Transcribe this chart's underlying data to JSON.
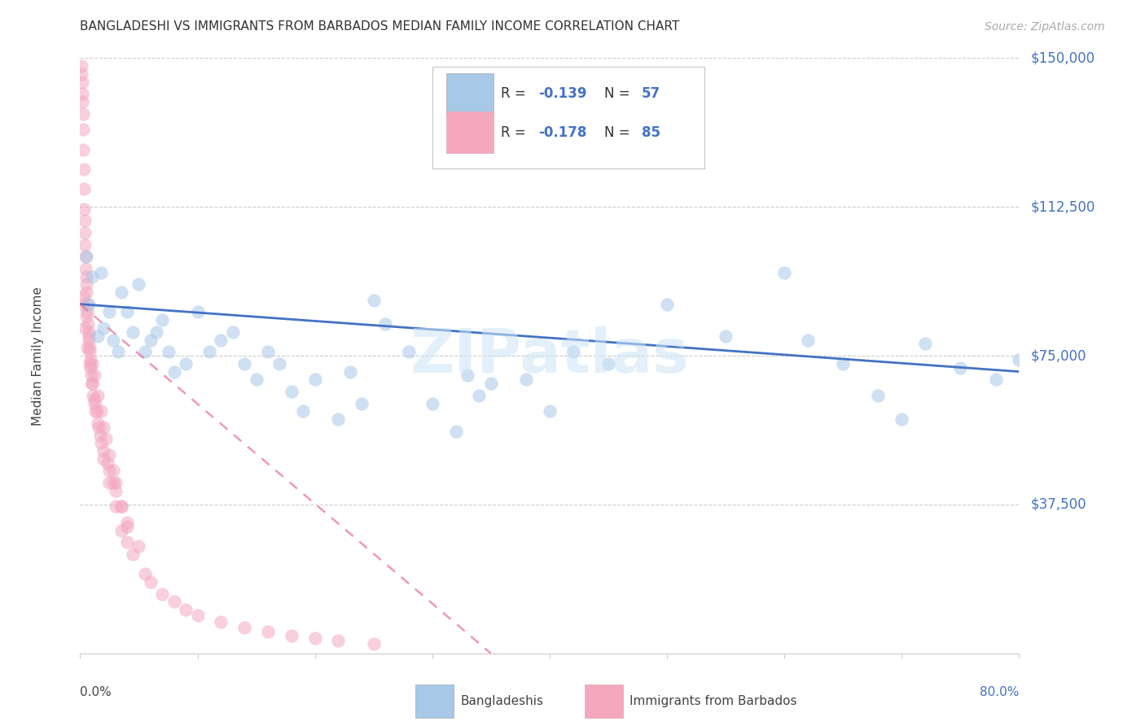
{
  "title": "BANGLADESHI VS IMMIGRANTS FROM BARBADOS MEDIAN FAMILY INCOME CORRELATION CHART",
  "source": "Source: ZipAtlas.com",
  "ylabel": "Median Family Income",
  "xmin": 0.0,
  "xmax": 80.0,
  "ymin": 0,
  "ymax": 150000,
  "watermark": "ZIPatlas",
  "yticks": [
    0,
    37500,
    75000,
    112500,
    150000
  ],
  "ytick_labels": [
    "",
    "$37,500",
    "$75,000",
    "$112,500",
    "$150,000"
  ],
  "blue_color": "#a8c8e8",
  "pink_color": "#f4a8c0",
  "blue_line_color": "#4472c4",
  "pink_line_color": "#e87090",
  "blue_trend_x": [
    0.0,
    80.0
  ],
  "blue_trend_y": [
    88000,
    71000
  ],
  "pink_trend_x": [
    0.0,
    35.0
  ],
  "pink_trend_y": [
    88000,
    0
  ],
  "blue_x": [
    0.5,
    0.7,
    1.0,
    1.5,
    1.8,
    2.0,
    2.5,
    2.8,
    3.2,
    3.5,
    4.0,
    4.5,
    5.0,
    5.5,
    6.0,
    6.5,
    7.0,
    7.5,
    8.0,
    9.0,
    10.0,
    11.0,
    12.0,
    13.0,
    14.0,
    15.0,
    16.0,
    17.0,
    18.0,
    19.0,
    20.0,
    22.0,
    23.0,
    24.0,
    25.0,
    26.0,
    28.0,
    30.0,
    32.0,
    33.0,
    34.0,
    35.0,
    38.0,
    40.0,
    42.0,
    45.0,
    50.0,
    55.0,
    60.0,
    62.0,
    65.0,
    68.0,
    70.0,
    72.0,
    75.0,
    78.0,
    80.0
  ],
  "blue_y": [
    100000,
    88000,
    95000,
    80000,
    96000,
    82000,
    86000,
    79000,
    76000,
    91000,
    86000,
    81000,
    93000,
    76000,
    79000,
    81000,
    84000,
    76000,
    71000,
    73000,
    86000,
    76000,
    79000,
    81000,
    73000,
    69000,
    76000,
    73000,
    66000,
    61000,
    69000,
    59000,
    71000,
    63000,
    89000,
    83000,
    76000,
    63000,
    56000,
    70000,
    65000,
    68000,
    69000,
    61000,
    76000,
    73000,
    88000,
    80000,
    96000,
    79000,
    73000,
    65000,
    59000,
    78000,
    72000,
    69000,
    74000
  ],
  "pink_x": [
    0.1,
    0.12,
    0.15,
    0.18,
    0.2,
    0.22,
    0.25,
    0.28,
    0.3,
    0.32,
    0.35,
    0.38,
    0.4,
    0.42,
    0.45,
    0.48,
    0.5,
    0.52,
    0.55,
    0.58,
    0.6,
    0.65,
    0.7,
    0.75,
    0.8,
    0.85,
    0.9,
    0.95,
    1.0,
    1.1,
    1.2,
    1.3,
    1.5,
    1.7,
    2.0,
    2.3,
    2.5,
    2.8,
    3.0,
    3.5,
    4.0,
    5.0,
    0.3,
    0.5,
    0.7,
    0.8,
    1.0,
    1.2,
    1.5,
    1.8,
    2.0,
    2.2,
    2.5,
    2.8,
    3.0,
    3.5,
    4.0,
    0.2,
    0.4,
    0.6,
    0.8,
    1.0,
    1.2,
    1.4,
    1.6,
    1.8,
    2.0,
    2.5,
    3.0,
    3.5,
    4.0,
    4.5,
    5.5,
    6.0,
    7.0,
    8.0,
    9.0,
    10.0,
    12.0,
    14.0,
    16.0,
    18.0,
    20.0,
    22.0,
    25.0
  ],
  "pink_y": [
    148000,
    146000,
    144000,
    141000,
    139000,
    136000,
    132000,
    127000,
    122000,
    117000,
    112000,
    109000,
    106000,
    103000,
    100000,
    97000,
    95000,
    93000,
    91000,
    88000,
    86000,
    83000,
    81000,
    79000,
    76000,
    74000,
    72000,
    70000,
    68000,
    65000,
    63000,
    61000,
    58000,
    55000,
    51000,
    48000,
    46000,
    43000,
    41000,
    37000,
    33000,
    27000,
    90000,
    85000,
    80000,
    77000,
    73000,
    70000,
    65000,
    61000,
    57000,
    54000,
    50000,
    46000,
    43000,
    37000,
    32000,
    88000,
    82000,
    77000,
    73000,
    68000,
    64000,
    61000,
    57000,
    53000,
    49000,
    43000,
    37000,
    31000,
    28000,
    25000,
    20000,
    18000,
    15000,
    13000,
    11000,
    9500,
    8000,
    6500,
    5500,
    4500,
    3800,
    3200,
    2500
  ]
}
